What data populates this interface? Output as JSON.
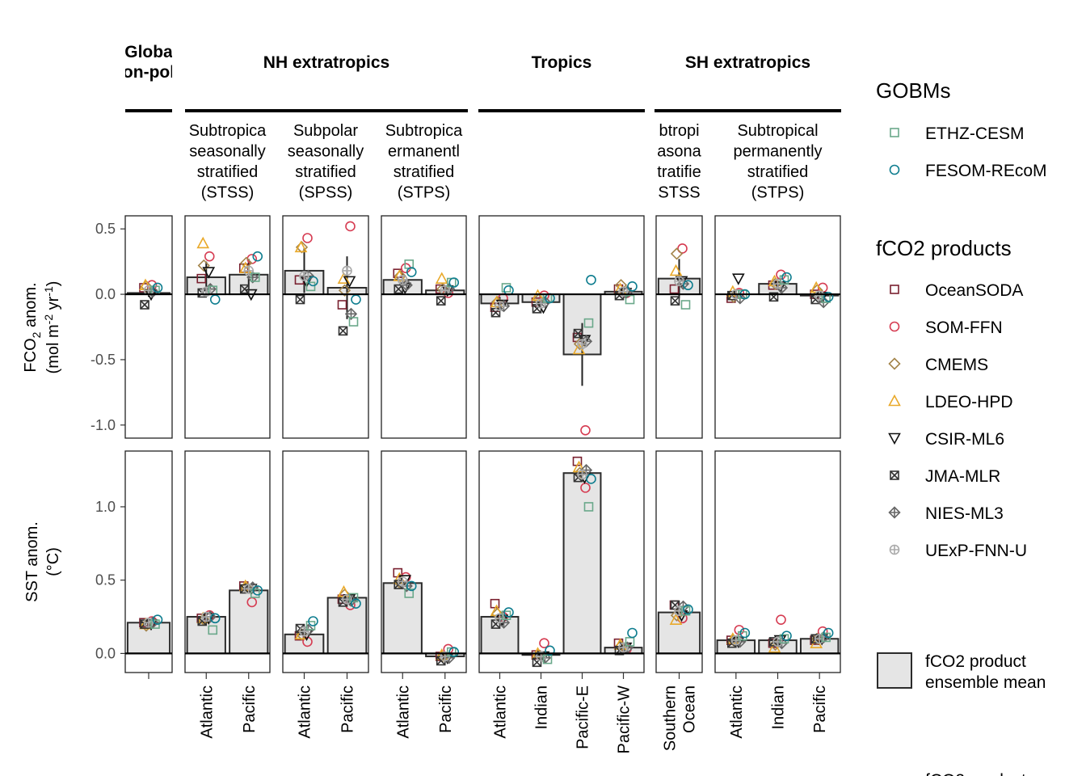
{
  "chart_data": {
    "type": "bar",
    "title": "",
    "panels_y": [
      {
        "id": "fco2",
        "ylabel_line1": "FCO",
        "ylabel_sub": "2",
        "ylabel_line1_end": " anom.",
        "ylabel_line2": "(mol m",
        "ylabel_sup1": "-2",
        "ylabel_mid": " yr",
        "ylabel_sup2": "-1",
        "ylabel_end": ")",
        "ylim": [
          -1.1,
          0.6
        ],
        "ticks": [
          0.5,
          0.0,
          -0.5,
          -1.0
        ],
        "tick_labels": [
          "0.5",
          "0.0",
          "-0.5",
          "-1.0"
        ]
      },
      {
        "id": "sst",
        "ylabel_line1": "SST anom.",
        "ylabel_line2": "(°C)",
        "ylim": [
          -0.13,
          1.38
        ],
        "ticks": [
          1.0,
          0.5,
          0.0
        ],
        "tick_labels": [
          "1.0",
          "0.5",
          "0.0"
        ]
      }
    ],
    "groups": [
      {
        "name": "Globa\non-pol",
        "biomes": [
          {
            "label": "",
            "categories": [
              ""
            ]
          }
        ]
      },
      {
        "name": "NH extratropics",
        "biomes": [
          {
            "label": "Subtropica\nseasonally\nstratified\n(STSS)",
            "categories": [
              "Atlantic",
              "Pacific"
            ]
          },
          {
            "label": "Subpolar\nseasonally\nstratified\n(SPSS)",
            "categories": [
              "Atlantic",
              "Pacific"
            ]
          },
          {
            "label": "Subtropica\nermanentl\nstratified\n(STPS)",
            "categories": [
              "Atlantic",
              "Pacific"
            ]
          }
        ]
      },
      {
        "name": "Tropics",
        "biomes": [
          {
            "label": "",
            "categories": [
              "Atlantic",
              "Indian",
              "Pacific-E",
              "Pacific-W"
            ]
          }
        ]
      },
      {
        "name": "SH extratropics",
        "biomes": [
          {
            "label": "btropi\nasona\ntratifie\nSTSS",
            "categories": [
              "Southern\nOcean"
            ]
          },
          {
            "label": "Subtropical\npermanently\nstratified\n(STPS)",
            "categories": [
              "Atlantic",
              "Indian",
              "Pacific"
            ]
          }
        ]
      }
    ],
    "series_legend": {
      "gobm_title": "GOBMs",
      "gobm": [
        {
          "name": "ETHZ-CESM",
          "color": "#6aa88a",
          "shape": "square"
        },
        {
          "name": "FESOM-REcoM",
          "color": "#0e7d8f",
          "shape": "circle"
        }
      ],
      "product_title": "fCO2 products",
      "products": [
        {
          "name": "OceanSODA",
          "color": "#7a2130",
          "shape": "square"
        },
        {
          "name": "SOM-FFN",
          "color": "#d63c52",
          "shape": "circle"
        },
        {
          "name": "CMEMS",
          "color": "#a3844a",
          "shape": "diamond"
        },
        {
          "name": "LDEO-HPD",
          "color": "#e9a92a",
          "shape": "triangle"
        },
        {
          "name": "CSIR-ML6",
          "color": "#111111",
          "shape": "triangle-down"
        },
        {
          "name": "JMA-MLR",
          "color": "#333333",
          "shape": "square-x"
        },
        {
          "name": "NIES-ML3",
          "color": "#666666",
          "shape": "diamond-plus"
        },
        {
          "name": "UExP-FNN-U",
          "color": "#aaaaaa",
          "shape": "circle-plus"
        }
      ],
      "ensemble_label": "fCO2 product\nensemble mean",
      "ensemble_fill": "#e5e5e5",
      "footer_fragment": "fCO2 product"
    },
    "fco2_values": [
      {
        "mean": 0.01,
        "err": 0.03,
        "gobm": [
          0.03,
          0.05
        ],
        "products": [
          0.05,
          0.07,
          0.06,
          0.07,
          0.0,
          -0.08,
          0.02,
          0.03
        ]
      },
      {
        "mean": 0.13,
        "err": 0.12,
        "gobm": [
          0.03,
          -0.04
        ],
        "products": [
          0.12,
          0.29,
          0.22,
          0.39,
          0.17,
          0.01,
          0.04,
          0.02
        ]
      },
      {
        "mean": 0.15,
        "err": 0.12,
        "gobm": [
          0.13,
          0.29
        ],
        "products": [
          0.2,
          0.27,
          0.24,
          0.2,
          0.0,
          0.04,
          0.13,
          0.18
        ]
      },
      {
        "mean": 0.18,
        "err": 0.17,
        "gobm": [
          0.06,
          0.1
        ],
        "products": [
          0.11,
          0.43,
          0.36,
          0.36,
          0.1,
          -0.04,
          0.14,
          0.14
        ]
      },
      {
        "mean": 0.05,
        "err": 0.24,
        "gobm": [
          -0.21,
          -0.04
        ],
        "products": [
          -0.08,
          0.52,
          0.03,
          0.12,
          0.1,
          -0.28,
          -0.15,
          0.18
        ]
      },
      {
        "mean": 0.11,
        "err": 0.05,
        "gobm": [
          0.23,
          0.17
        ],
        "products": [
          0.16,
          0.2,
          0.14,
          0.14,
          0.05,
          0.04,
          0.07,
          0.11
        ]
      },
      {
        "mean": 0.03,
        "err": 0.03,
        "gobm": [
          0.09,
          0.09
        ],
        "products": [
          0.04,
          0.01,
          0.04,
          0.12,
          0.03,
          -0.05,
          0.04,
          0.03
        ]
      },
      {
        "mean": -0.07,
        "err": 0.05,
        "gobm": [
          0.05,
          0.03
        ],
        "products": [
          -0.1,
          -0.03,
          -0.06,
          -0.06,
          -0.08,
          -0.14,
          -0.09,
          -0.09
        ]
      },
      {
        "mean": -0.06,
        "err": 0.04,
        "gobm": [
          -0.03,
          -0.03
        ],
        "products": [
          -0.06,
          -0.01,
          -0.04,
          -0.01,
          -0.1,
          -0.11,
          -0.06,
          -0.07
        ]
      },
      {
        "mean": -0.46,
        "err": 0.24,
        "gobm": [
          -0.22,
          0.11
        ],
        "products": [
          -0.33,
          -1.04,
          -0.38,
          -0.42,
          -0.35,
          -0.3,
          -0.36,
          -0.38
        ]
      },
      {
        "mean": 0.02,
        "err": 0.03,
        "gobm": [
          -0.04,
          0.06
        ],
        "products": [
          0.04,
          0.01,
          0.07,
          0.04,
          0.01,
          -0.01,
          0.02,
          0.02
        ]
      },
      {
        "mean": 0.12,
        "err": 0.15,
        "gobm": [
          -0.08,
          0.07
        ],
        "products": [
          0.04,
          0.35,
          0.31,
          0.18,
          0.1,
          -0.05,
          0.08,
          0.1
        ]
      },
      {
        "mean": 0.0,
        "err": 0.04,
        "gobm": [
          0.0,
          0.0
        ],
        "products": [
          -0.03,
          0.01,
          -0.02,
          0.02,
          0.12,
          -0.01,
          -0.03,
          0.0
        ]
      },
      {
        "mean": 0.08,
        "err": 0.04,
        "gobm": [
          0.11,
          0.13
        ],
        "products": [
          0.07,
          0.15,
          0.08,
          0.1,
          0.06,
          -0.02,
          0.05,
          0.08
        ]
      },
      {
        "mean": -0.01,
        "err": 0.03,
        "gobm": [
          -0.03,
          -0.02
        ],
        "products": [
          0.0,
          0.05,
          0.03,
          0.05,
          -0.02,
          -0.04,
          -0.06,
          -0.01
        ]
      }
    ],
    "sst_values": [
      {
        "mean": 0.21,
        "gobm": [
          0.2,
          0.23
        ],
        "products": [
          0.21,
          0.22,
          0.19,
          0.2,
          0.2,
          0.2,
          0.21,
          0.21
        ]
      },
      {
        "mean": 0.25,
        "gobm": [
          0.16,
          0.24
        ],
        "products": [
          0.24,
          0.26,
          0.23,
          0.24,
          0.24,
          0.22,
          0.25,
          0.25
        ]
      },
      {
        "mean": 0.43,
        "gobm": [
          0.41,
          0.43
        ],
        "products": [
          0.46,
          0.35,
          0.45,
          0.46,
          0.44,
          0.44,
          0.45,
          0.44
        ]
      },
      {
        "mean": 0.13,
        "gobm": [
          0.19,
          0.22
        ],
        "products": [
          0.12,
          0.08,
          0.13,
          0.13,
          0.13,
          0.17,
          0.16,
          0.15
        ]
      },
      {
        "mean": 0.38,
        "gobm": [
          0.38,
          0.34
        ],
        "products": [
          0.37,
          0.33,
          0.4,
          0.42,
          0.37,
          0.35,
          0.36,
          0.37
        ]
      },
      {
        "mean": 0.48,
        "gobm": [
          0.41,
          0.46
        ],
        "products": [
          0.55,
          0.52,
          0.48,
          0.51,
          0.5,
          0.47,
          0.46,
          0.49
        ]
      },
      {
        "mean": -0.02,
        "gobm": [
          0.01,
          0.01
        ],
        "products": [
          -0.02,
          0.03,
          -0.02,
          -0.01,
          -0.03,
          -0.05,
          -0.03,
          -0.02
        ]
      },
      {
        "mean": 0.25,
        "gobm": [
          0.26,
          0.28
        ],
        "products": [
          0.34,
          0.25,
          0.27,
          0.29,
          0.23,
          0.2,
          0.21,
          0.24
        ]
      },
      {
        "mean": -0.01,
        "gobm": [
          -0.04,
          0.02
        ],
        "products": [
          -0.01,
          0.07,
          -0.01,
          0.0,
          -0.02,
          -0.06,
          -0.03,
          -0.02
        ]
      },
      {
        "mean": 1.23,
        "gobm": [
          1.0,
          1.19
        ],
        "products": [
          1.31,
          1.13,
          1.23,
          1.27,
          1.2,
          1.2,
          1.25,
          1.22
        ]
      },
      {
        "mean": 0.04,
        "gobm": [
          0.08,
          0.14
        ],
        "products": [
          0.07,
          0.03,
          0.05,
          0.06,
          0.04,
          0.02,
          0.04,
          0.04
        ]
      },
      {
        "mean": 0.28,
        "gobm": [
          0.29,
          0.3
        ],
        "products": [
          0.33,
          0.24,
          0.26,
          0.23,
          0.26,
          0.33,
          0.32,
          0.29
        ]
      },
      {
        "mean": 0.09,
        "gobm": [
          0.12,
          0.14
        ],
        "products": [
          0.09,
          0.16,
          0.09,
          0.1,
          0.08,
          0.07,
          0.08,
          0.09
        ]
      },
      {
        "mean": 0.09,
        "gobm": [
          0.1,
          0.12
        ],
        "products": [
          0.07,
          0.23,
          0.06,
          0.04,
          0.09,
          0.08,
          0.07,
          0.08
        ]
      },
      {
        "mean": 0.1,
        "gobm": [
          0.11,
          0.14
        ],
        "products": [
          0.09,
          0.15,
          0.1,
          0.07,
          0.1,
          0.1,
          0.11,
          0.1
        ]
      }
    ]
  }
}
